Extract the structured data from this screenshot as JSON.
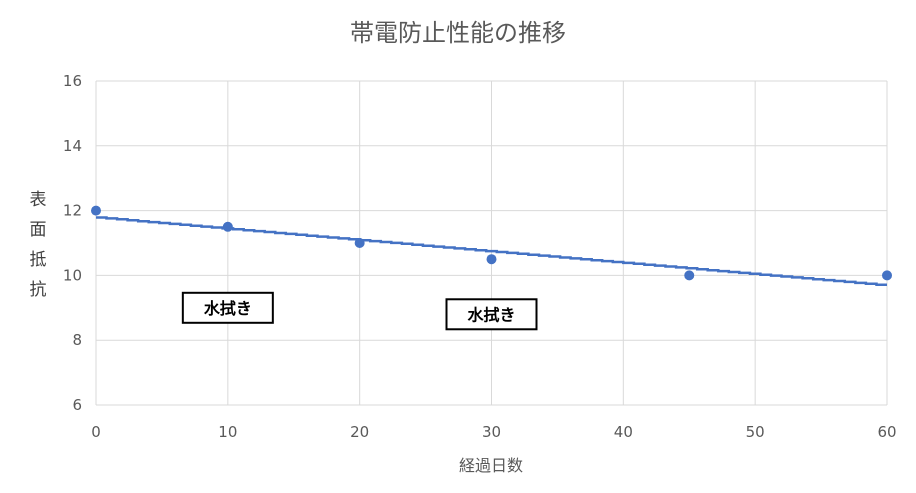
{
  "chart_data": {
    "type": "scatter",
    "title": "帯電防止性能の推移",
    "xlabel": "経過日数",
    "ylabel": "表面抵抗",
    "xlim": [
      0,
      60
    ],
    "ylim": [
      6,
      16
    ],
    "xticks": [
      0,
      10,
      20,
      30,
      40,
      50,
      60
    ],
    "yticks": [
      6,
      8,
      10,
      12,
      14,
      16
    ],
    "grid": true,
    "series": [
      {
        "x": [
          0,
          10,
          20,
          30,
          45,
          60
        ],
        "y": [
          12.0,
          11.5,
          11.0,
          10.5,
          10.0,
          10.0
        ],
        "color": "#4472C4"
      }
    ],
    "trendline": {
      "type": "linear",
      "x": [
        0,
        60
      ],
      "y": [
        11.8,
        9.7
      ],
      "color": "#4472C4"
    },
    "annotations": [
      {
        "text": "水拭き",
        "x": 10,
        "y": 9.0
      },
      {
        "text": "水拭き",
        "x": 30,
        "y": 8.8
      }
    ]
  }
}
